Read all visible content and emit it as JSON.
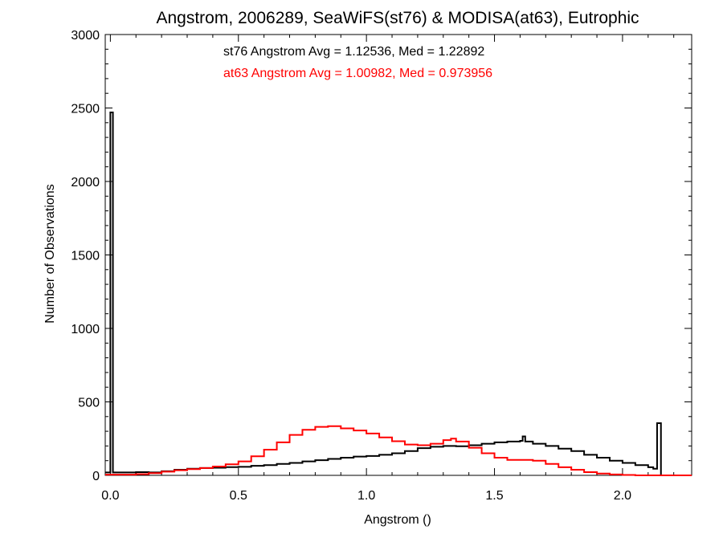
{
  "chart_data": {
    "type": "line",
    "title": "Angstrom, 2006289, SeaWiFS(st76) & MODISA(at63), Eutrophic",
    "xlabel": "Angstrom ()",
    "ylabel": "Number of Observations",
    "xlim": [
      -0.02,
      2.27
    ],
    "ylim": [
      0,
      3000
    ],
    "xticks": [
      0.0,
      0.5,
      1.0,
      1.5,
      2.0
    ],
    "xtick_labels": [
      "0.0",
      "0.5",
      "1.0",
      "1.5",
      "2.0"
    ],
    "yticks": [
      0,
      500,
      1000,
      1500,
      2000,
      2500,
      3000
    ],
    "ytick_labels": [
      "0",
      "500",
      "1000",
      "1500",
      "2000",
      "2500",
      "3000"
    ],
    "grid": false,
    "annotations": [
      {
        "text": "st76 Angstrom Avg = 1.12536, Med = 1.22892",
        "color": "#000000"
      },
      {
        "text": "at63 Angstrom Avg = 1.00982, Med = 0.973956",
        "color": "#ff0000"
      }
    ],
    "series": [
      {
        "color": "#000000",
        "points": [
          [
            -0.02,
            20
          ],
          [
            -0.005,
            20
          ],
          [
            0.0,
            2470
          ],
          [
            0.008,
            2470
          ],
          [
            0.01,
            20
          ],
          [
            0.05,
            20
          ],
          [
            0.1,
            22
          ],
          [
            0.15,
            20
          ],
          [
            0.2,
            28
          ],
          [
            0.25,
            38
          ],
          [
            0.3,
            45
          ],
          [
            0.35,
            50
          ],
          [
            0.4,
            52
          ],
          [
            0.45,
            56
          ],
          [
            0.5,
            58
          ],
          [
            0.55,
            65
          ],
          [
            0.6,
            70
          ],
          [
            0.65,
            78
          ],
          [
            0.7,
            85
          ],
          [
            0.75,
            95
          ],
          [
            0.8,
            103
          ],
          [
            0.85,
            112
          ],
          [
            0.9,
            120
          ],
          [
            0.95,
            128
          ],
          [
            1.0,
            132
          ],
          [
            1.05,
            140
          ],
          [
            1.1,
            150
          ],
          [
            1.15,
            165
          ],
          [
            1.2,
            185
          ],
          [
            1.25,
            195
          ],
          [
            1.3,
            200
          ],
          [
            1.35,
            198
          ],
          [
            1.4,
            205
          ],
          [
            1.45,
            215
          ],
          [
            1.5,
            225
          ],
          [
            1.55,
            230
          ],
          [
            1.6,
            235
          ],
          [
            1.61,
            265
          ],
          [
            1.62,
            230
          ],
          [
            1.65,
            215
          ],
          [
            1.7,
            200
          ],
          [
            1.75,
            182
          ],
          [
            1.8,
            165
          ],
          [
            1.85,
            140
          ],
          [
            1.9,
            120
          ],
          [
            1.95,
            100
          ],
          [
            2.0,
            85
          ],
          [
            2.05,
            70
          ],
          [
            2.1,
            55
          ],
          [
            2.12,
            45
          ],
          [
            2.13,
            45
          ],
          [
            2.135,
            355
          ],
          [
            2.145,
            355
          ],
          [
            2.15,
            0
          ],
          [
            2.27,
            0
          ]
        ]
      },
      {
        "color": "#ff0000",
        "points": [
          [
            -0.02,
            5
          ],
          [
            0.05,
            5
          ],
          [
            0.1,
            8
          ],
          [
            0.15,
            15
          ],
          [
            0.2,
            25
          ],
          [
            0.25,
            35
          ],
          [
            0.3,
            42
          ],
          [
            0.35,
            50
          ],
          [
            0.4,
            60
          ],
          [
            0.45,
            75
          ],
          [
            0.5,
            95
          ],
          [
            0.55,
            130
          ],
          [
            0.6,
            175
          ],
          [
            0.65,
            225
          ],
          [
            0.7,
            275
          ],
          [
            0.75,
            310
          ],
          [
            0.8,
            330
          ],
          [
            0.85,
            335
          ],
          [
            0.9,
            320
          ],
          [
            0.95,
            305
          ],
          [
            1.0,
            285
          ],
          [
            1.05,
            258
          ],
          [
            1.1,
            232
          ],
          [
            1.15,
            210
          ],
          [
            1.2,
            205
          ],
          [
            1.25,
            215
          ],
          [
            1.3,
            240
          ],
          [
            1.33,
            250
          ],
          [
            1.35,
            230
          ],
          [
            1.4,
            188
          ],
          [
            1.45,
            150
          ],
          [
            1.5,
            120
          ],
          [
            1.55,
            105
          ],
          [
            1.6,
            105
          ],
          [
            1.65,
            100
          ],
          [
            1.7,
            78
          ],
          [
            1.75,
            55
          ],
          [
            1.8,
            38
          ],
          [
            1.85,
            22
          ],
          [
            1.9,
            12
          ],
          [
            1.95,
            6
          ],
          [
            2.0,
            3
          ],
          [
            2.05,
            0
          ],
          [
            2.27,
            0
          ]
        ]
      }
    ]
  }
}
